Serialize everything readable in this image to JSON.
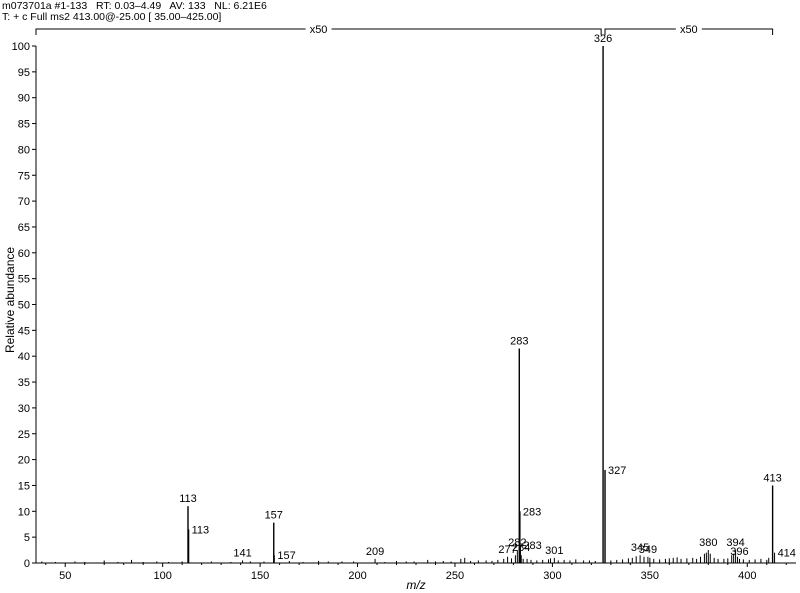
{
  "header": {
    "line1": "m073701a #1-133   RT: 0.03–4.49   AV: 133   NL: 6.21E6",
    "line2": "T: + c Full ms2 413.00@-25.00 [ 35.00–425.00]"
  },
  "chart_data": {
    "type": "bar",
    "xlabel": "m/z",
    "ylabel": "Relative abundance",
    "xlim": [
      35,
      425
    ],
    "ylim": [
      0,
      100
    ],
    "xticks": [
      50,
      100,
      150,
      200,
      250,
      300,
      350,
      400
    ],
    "yticks": [
      0,
      5,
      10,
      15,
      20,
      25,
      30,
      35,
      40,
      45,
      50,
      55,
      60,
      65,
      70,
      75,
      80,
      85,
      90,
      95,
      100
    ],
    "grid": false,
    "magnification": [
      {
        "label": "x50",
        "from": 35,
        "to": 325
      },
      {
        "label": "x50",
        "from": 327,
        "to": 413
      }
    ],
    "labeled_peaks": [
      {
        "label": "113",
        "x": 113,
        "y": 11
      },
      {
        "label": "113",
        "x": 113.3,
        "y": 6.5
      },
      {
        "label": "141",
        "x": 141,
        "y": 0.5
      },
      {
        "label": "157",
        "x": 157,
        "y": 7.8
      },
      {
        "label": "157",
        "x": 157.3,
        "y": 1.5
      },
      {
        "label": "209",
        "x": 209,
        "y": 0.8
      },
      {
        "label": "277",
        "x": 277,
        "y": 1.2
      },
      {
        "label": "282",
        "x": 282,
        "y": 2.5
      },
      {
        "label": "283",
        "x": 283,
        "y": 41.5
      },
      {
        "label": "283",
        "x": 283.3,
        "y": 10
      },
      {
        "label": "283",
        "x": 283.6,
        "y": 3.5
      },
      {
        "label": "284",
        "x": 284,
        "y": 1.5
      },
      {
        "label": "301",
        "x": 301,
        "y": 1
      },
      {
        "label": "326",
        "x": 326,
        "y": 100
      },
      {
        "label": "327",
        "x": 327,
        "y": 18
      },
      {
        "label": "345",
        "x": 345,
        "y": 1.5
      },
      {
        "label": "349",
        "x": 349,
        "y": 1.2
      },
      {
        "label": "380",
        "x": 380,
        "y": 2.5
      },
      {
        "label": "394",
        "x": 394,
        "y": 2.5
      },
      {
        "label": "396",
        "x": 396,
        "y": 0.8
      },
      {
        "label": "413",
        "x": 413,
        "y": 15
      },
      {
        "label": "414",
        "x": 414,
        "y": 2
      }
    ],
    "minor_peaks": [
      [
        38,
        0.3
      ],
      [
        45,
        0.2
      ],
      [
        55,
        0.3
      ],
      [
        60,
        0.2
      ],
      [
        70,
        0.5
      ],
      [
        77,
        0.2
      ],
      [
        84,
        0.6
      ],
      [
        90,
        0.2
      ],
      [
        97,
        0.3
      ],
      [
        103,
        0.2
      ],
      [
        110,
        0.3
      ],
      [
        125,
        0.3
      ],
      [
        135,
        0.2
      ],
      [
        145,
        0.3
      ],
      [
        152,
        0.3
      ],
      [
        165,
        0.4
      ],
      [
        172,
        0.2
      ],
      [
        180,
        0.4
      ],
      [
        185,
        0.3
      ],
      [
        192,
        0.3
      ],
      [
        198,
        0.3
      ],
      [
        214,
        0.2
      ],
      [
        220,
        0.4
      ],
      [
        225,
        0.3
      ],
      [
        229,
        0.3
      ],
      [
        236,
        0.6
      ],
      [
        240,
        0.3
      ],
      [
        244,
        0.4
      ],
      [
        248,
        0.3
      ],
      [
        253,
        0.8
      ],
      [
        255,
        1.0
      ],
      [
        258,
        0.4
      ],
      [
        262,
        0.5
      ],
      [
        266,
        0.5
      ],
      [
        269,
        0.4
      ],
      [
        272,
        0.6
      ],
      [
        275,
        0.8
      ],
      [
        279,
        0.9
      ],
      [
        281,
        1.5
      ],
      [
        285,
        0.8
      ],
      [
        287,
        0.8
      ],
      [
        289,
        0.6
      ],
      [
        292,
        0.5
      ],
      [
        295,
        0.6
      ],
      [
        298,
        0.7
      ],
      [
        299,
        0.9
      ],
      [
        303,
        0.5
      ],
      [
        306,
        0.6
      ],
      [
        309,
        0.5
      ],
      [
        312,
        0.7
      ],
      [
        316,
        0.5
      ],
      [
        319,
        0.5
      ],
      [
        322,
        0.4
      ],
      [
        330,
        0.5
      ],
      [
        333,
        0.6
      ],
      [
        336,
        0.7
      ],
      [
        339,
        0.9
      ],
      [
        341,
        1.0
      ],
      [
        343,
        1.3
      ],
      [
        347,
        1.2
      ],
      [
        350,
        1.0
      ],
      [
        352,
        0.8
      ],
      [
        355,
        0.7
      ],
      [
        358,
        0.8
      ],
      [
        360,
        0.9
      ],
      [
        362,
        1.0
      ],
      [
        364,
        1.1
      ],
      [
        366,
        0.8
      ],
      [
        369,
        0.9
      ],
      [
        372,
        1.0
      ],
      [
        374,
        0.8
      ],
      [
        376,
        1.2
      ],
      [
        378,
        1.8
      ],
      [
        379,
        2.0
      ],
      [
        381,
        1.8
      ],
      [
        383,
        1.0
      ],
      [
        385,
        0.8
      ],
      [
        388,
        0.8
      ],
      [
        390,
        0.9
      ],
      [
        392,
        1.5
      ],
      [
        393,
        1.8
      ],
      [
        395,
        1.2
      ],
      [
        398,
        0.7
      ],
      [
        401,
        0.6
      ],
      [
        404,
        0.7
      ],
      [
        407,
        0.8
      ],
      [
        410,
        0.6
      ],
      [
        411,
        1.0
      ]
    ]
  }
}
